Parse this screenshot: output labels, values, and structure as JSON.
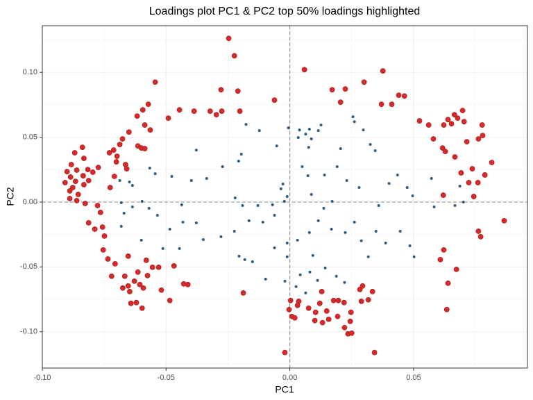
{
  "chart_data": {
    "type": "scatter",
    "title": "Loadings plot PC1 & PC2 top 50% loadings highlighted",
    "x_label": "PC1",
    "y_label": "PC2",
    "xlim": [
      -0.1,
      0.096
    ],
    "ylim": [
      -0.128,
      0.136
    ],
    "xticks": [
      {
        "value": -0.1,
        "label": "-0.10"
      },
      {
        "value": -0.05,
        "label": "-0.05"
      },
      {
        "value": 0,
        "label": "0.00"
      },
      {
        "value": 0.05,
        "label": "0.05"
      }
    ],
    "yticks": [
      {
        "value": -0.1,
        "label": "-0.10"
      },
      {
        "value": -0.05,
        "label": "-0.05"
      },
      {
        "value": 0,
        "label": "0.00"
      },
      {
        "value": 0.05,
        "label": "0.05"
      },
      {
        "value": 0.1,
        "label": "0.10"
      }
    ],
    "xminor": [
      -0.075,
      -0.025,
      0.025,
      0.075
    ],
    "yminor": [
      -0.125,
      -0.075,
      -0.025,
      0.025,
      0.075,
      0.125
    ],
    "grid": true,
    "reference_lines": {
      "x": 0,
      "y": 0
    },
    "series": [
      {
        "color": "#d42a2a",
        "x": [
          -0.0247,
          -0.0224,
          0.0059,
          0.0376,
          -0.0544,
          -0.0278,
          -0.021,
          -0.0062,
          0.0224,
          0.03,
          0.0171,
          0.044,
          0.0463,
          0.037,
          0.0412,
          0.0205,
          -0.0572,
          -0.0594,
          -0.0446,
          -0.0387,
          -0.0322,
          -0.0297,
          -0.0275,
          -0.0202,
          -0.0491,
          -0.0617,
          -0.0586,
          -0.0564,
          -0.065,
          -0.0676,
          -0.0687,
          -0.0614,
          -0.06,
          -0.0586,
          -0.0712,
          -0.0729,
          -0.0698,
          -0.0701,
          -0.0664,
          -0.0659,
          -0.0774,
          -0.0709,
          -0.0726,
          -0.0838,
          -0.0869,
          -0.0832,
          -0.0883,
          -0.0861,
          -0.09,
          -0.0816,
          -0.0796,
          -0.0835,
          -0.0886,
          -0.0866,
          -0.0908,
          -0.0813,
          -0.0832,
          -0.0877,
          -0.0889,
          -0.0855,
          -0.0889,
          -0.0861,
          -0.0827,
          -0.0777,
          -0.0765,
          -0.0813,
          -0.0788,
          -0.0757,
          -0.0749,
          -0.0754,
          -0.0735,
          -0.0706,
          -0.0653,
          -0.058,
          -0.0555,
          -0.053,
          -0.0468,
          -0.072,
          -0.0667,
          -0.0614,
          -0.0628,
          -0.0575,
          -0.0653,
          -0.0606,
          -0.0592,
          -0.0675,
          -0.0647,
          -0.0519,
          -0.0429,
          -0.0412,
          -0.0485,
          -0.0642,
          -0.062,
          -0.0597,
          -0.0188,
          -0.002,
          0.0003,
          -0.0003,
          0.0008,
          0.0036,
          0.0031,
          0.002,
          0.0076,
          0.0121,
          0.0104,
          0.0129,
          0.0177,
          0.0196,
          0.0219,
          0.0149,
          0.0101,
          0.0157,
          0.0193,
          0.0247,
          0.0283,
          0.0294,
          0.0289,
          0.0317,
          0.0244,
          0.0221,
          0.0235,
          0.025,
          0.0342,
          0.0132,
          0.0334,
          0.0524,
          0.0561,
          0.0622,
          0.0639,
          0.0665,
          0.0698,
          0.0678,
          0.0653,
          0.0704,
          0.0777,
          0.058,
          0.0617,
          0.0628,
          0.0667,
          0.0715,
          0.0762,
          0.0779,
          0.0816,
          0.0788,
          0.0737,
          0.076,
          0.0692,
          0.0723,
          0.0743,
          0.062,
          0.0866,
          0.0762,
          0.0771,
          0.0622,
          0.0608,
          0.0673,
          0.0639,
          0.0634
        ],
        "values": [
          0.1262,
          0.1128,
          0.1021,
          0.1011,
          0.0925,
          0.0866,
          0.0856,
          0.0786,
          0.0872,
          0.0925,
          0.0866,
          0.0824,
          0.0818,
          0.0754,
          0.0754,
          0.077,
          0.0754,
          0.0711,
          0.0711,
          0.0701,
          0.0701,
          0.0674,
          0.0701,
          0.0701,
          0.0647,
          0.0663,
          0.0594,
          0.0556,
          0.054,
          0.0487,
          0.0444,
          0.0433,
          0.0417,
          0.0412,
          0.0401,
          0.038,
          0.0353,
          0.031,
          0.0289,
          0.0257,
          0.0267,
          0.0198,
          0.0112,
          0.0422,
          0.038,
          0.0337,
          0.0289,
          0.0246,
          0.0235,
          0.0251,
          0.023,
          0.0203,
          0.0193,
          0.016,
          0.015,
          0.0166,
          0.0134,
          0.0112,
          0.0086,
          0.0059,
          0.0027,
          0.0011,
          -0.0011,
          -0.0027,
          -0.008,
          -0.016,
          -0.0209,
          -0.0193,
          -0.0262,
          -0.0369,
          -0.0439,
          -0.0476,
          -0.0417,
          -0.0449,
          -0.0503,
          -0.0503,
          -0.0492,
          -0.0572,
          -0.0572,
          -0.054,
          -0.061,
          -0.0567,
          -0.0647,
          -0.0636,
          -0.0663,
          -0.0663,
          -0.069,
          -0.0679,
          -0.0631,
          -0.0636,
          -0.0759,
          -0.0781,
          -0.0775,
          -0.0818,
          -0.0701,
          -0.116,
          -0.0759,
          -0.0829,
          -0.0882,
          -0.0765,
          -0.0797,
          -0.0893,
          -0.0818,
          -0.0781,
          -0.085,
          -0.069,
          -0.0759,
          -0.0759,
          -0.0775,
          -0.084,
          -0.0914,
          -0.0904,
          -0.0882,
          -0.085,
          -0.0674,
          -0.0647,
          -0.0765,
          -0.0754,
          -0.092,
          -0.0968,
          -0.1016,
          -0.1011,
          -0.116,
          -0.093,
          -0.069,
          0.0626,
          0.0594,
          0.0594,
          0.0636,
          0.0674,
          0.0706,
          0.0647,
          0.0604,
          0.062,
          0.0594,
          0.0487,
          0.0417,
          0.039,
          0.0348,
          0.0465,
          0.0487,
          0.0513,
          0.0305,
          0.0209,
          0.0257,
          0.015,
          0.0225,
          0.015,
          0.0043,
          0.0053,
          -0.0144,
          -0.0225,
          -0.0267,
          -0.0369,
          -0.0444,
          -0.0519,
          -0.0626,
          -0.0829
        ]
      },
      {
        "color": "#2d5b84",
        "x": [
          -0.0006,
          -0.0123,
          -0.0177,
          -0.0053,
          0.0039,
          0.0064,
          0.0079,
          0.0115,
          0.0126,
          0.0255,
          0.0261,
          0.0297,
          0.0034,
          0.0076,
          0.0087,
          0.0205,
          0.0345,
          0.0325,
          -0.0378,
          -0.0196,
          -0.0207,
          -0.0272,
          -0.0336,
          -0.0398,
          -0.0477,
          -0.0566,
          -0.0544,
          -0.0648,
          -0.0636,
          -0.0687,
          -0.0028,
          -0.0036,
          -0.0011,
          -0.0022,
          0.005,
          0.0073,
          0.014,
          0.0191,
          0.023,
          0.028,
          0.0401,
          0.0435,
          0.0474,
          0.0496,
          0.0572,
          0.0583,
          0.0667,
          0.0701,
          0.0687,
          -0.0221,
          -0.0191,
          -0.0129,
          -0.007,
          -0.0062,
          -0.0109,
          -0.0165,
          -0.0224,
          -0.0278,
          -0.035,
          -0.0378,
          -0.0437,
          -0.0535,
          -0.0569,
          -0.0597,
          -0.0636,
          -0.0681,
          -0.067,
          -0.0681,
          -0.06,
          -0.0513,
          -0.0446,
          -0.0485,
          -0.0432,
          -0.0205,
          -0.0182,
          -0.0151,
          -0.0098,
          -0.002,
          0.0025,
          0.0042,
          0.0081,
          0.0143,
          0.0188,
          0.0221,
          0.0064,
          0.0112,
          -0.0011,
          0.0031,
          0.0079,
          0.0115,
          0.0168,
          0.0224,
          0.0261,
          0.0289,
          0.0348,
          0.0387,
          0.0446,
          0.0485,
          0.0502,
          0.0317,
          0.0093,
          -0.0011,
          -0.0062,
          0.0087,
          0.0137,
          0.0171,
          0.0359
        ],
        "values": [
          0.0572,
          0.0551,
          0.0599,
          0.0433,
          0.0556,
          0.0524,
          0.0562,
          0.0551,
          0.0594,
          0.0658,
          0.062,
          0.0556,
          0.0497,
          0.0422,
          0.0487,
          0.0412,
          0.0396,
          0.0444,
          0.0401,
          0.0369,
          0.0316,
          0.0273,
          0.0182,
          0.0166,
          0.0198,
          0.0262,
          0.0219,
          0.0155,
          0.0128,
          0.0166,
          0.0139,
          0.0102,
          0.0043,
          0.0005,
          0.0273,
          0.0203,
          0.0209,
          0.0273,
          0.0166,
          0.0112,
          0.0144,
          0.0209,
          0.0112,
          0.0048,
          0.0182,
          -0.0037,
          -0.0027,
          0.0,
          0.0123,
          0.0032,
          -0.0027,
          -0.0027,
          -0.0021,
          -0.0102,
          -0.0155,
          -0.0144,
          -0.0225,
          -0.0267,
          -0.0289,
          -0.016,
          -0.0021,
          -0.0102,
          -0.0048,
          0.0005,
          -0.0037,
          -0.0005,
          -0.0086,
          -0.0187,
          -0.0294,
          -0.0358,
          -0.0358,
          -0.0209,
          -0.0155,
          -0.0417,
          -0.0444,
          -0.046,
          -0.0594,
          -0.061,
          -0.0652,
          -0.0561,
          -0.054,
          -0.0508,
          -0.0572,
          -0.062,
          -0.0701,
          -0.0604,
          -0.0316,
          -0.0294,
          -0.0235,
          -0.0144,
          -0.0209,
          -0.0235,
          -0.0155,
          -0.0299,
          -0.0225,
          -0.0316,
          -0.0225,
          -0.0337,
          -0.0422,
          -0.0422,
          -0.0412,
          -0.0422,
          -0.0353,
          0.0059,
          -0.0048,
          0.0005,
          -0.0027
        ]
      }
    ]
  }
}
